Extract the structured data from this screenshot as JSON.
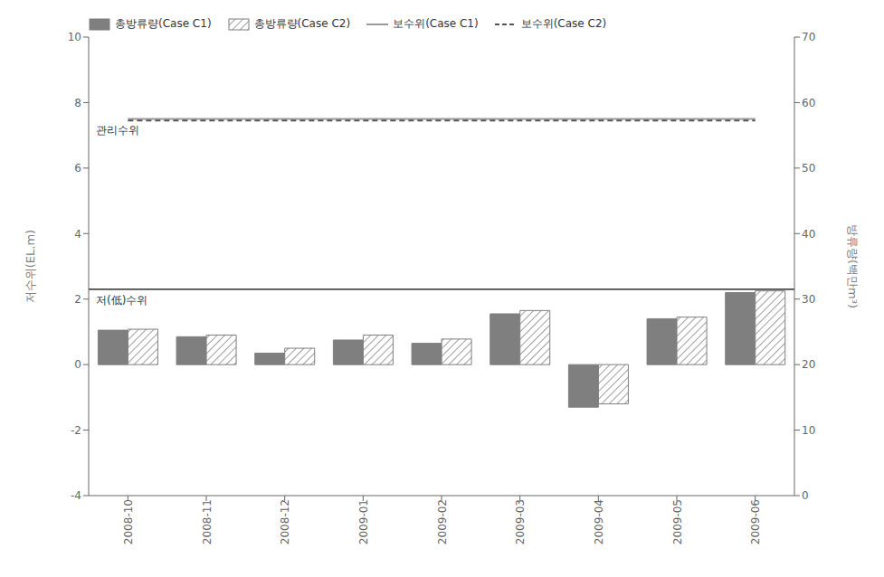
{
  "chart_data": {
    "type": "bar",
    "categories": [
      "2008-10",
      "2008-11",
      "2008-12",
      "2009-01",
      "2009-02",
      "2009-03",
      "2009-04",
      "2009-05",
      "2009-06"
    ],
    "series": [
      {
        "name": "총방류량(Case C1)",
        "type": "bar",
        "color": "#7f7f7f",
        "values": [
          1.05,
          0.85,
          0.35,
          0.75,
          0.65,
          1.55,
          -1.3,
          1.4,
          2.2
        ]
      },
      {
        "name": "총방류량(Case C2)",
        "type": "bar",
        "color": "#7f7f7f",
        "values": [
          1.08,
          0.9,
          0.5,
          0.9,
          0.78,
          1.65,
          -1.2,
          1.45,
          2.25
        ]
      },
      {
        "name": "보수위(Case C1)",
        "type": "line",
        "color": "#999999",
        "line_style": "solid",
        "values": [
          7.5,
          7.5,
          7.5,
          7.5,
          7.5,
          7.5,
          7.5,
          7.5,
          7.5
        ]
      },
      {
        "name": "보수위(Case C2)",
        "type": "line",
        "color": "#555555",
        "line_style": "dashed",
        "values": [
          7.45,
          7.45,
          7.45,
          7.45,
          7.45,
          7.45,
          7.45,
          7.45,
          7.45
        ]
      }
    ],
    "ylabel": "저수위(EL.m)",
    "y2label": "방류량(백만m³)",
    "ylim": [
      -4,
      10
    ],
    "yticks": [
      -4,
      -2,
      0,
      2,
      4,
      6,
      8,
      10
    ],
    "y2lim": [
      0,
      70
    ],
    "y2ticks": [
      0,
      10,
      20,
      30,
      40,
      50,
      60,
      70
    ],
    "reference_lines": [
      {
        "y": 2.3,
        "color": "#000000",
        "label": "저(低)수위"
      }
    ],
    "annotations": [
      {
        "text": "관리수위",
        "y": 7.5
      }
    ],
    "grid": false,
    "legend": "upper left"
  }
}
